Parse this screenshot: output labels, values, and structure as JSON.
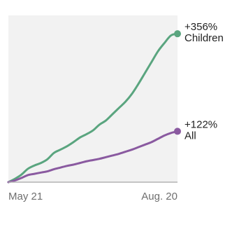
{
  "chart_data": {
    "type": "line",
    "title": "",
    "xlabel": "",
    "ylabel": "",
    "x_ticks": [
      "May 21",
      "Aug. 20"
    ],
    "ylim": [
      0,
      400
    ],
    "grid": false,
    "legend": "none",
    "colors": {
      "plot_background": "#f2f2f2",
      "baseline": "#b3b3b3",
      "children": "#5aa57f",
      "all": "#8a5aa0"
    },
    "x": [
      0,
      1,
      2,
      3,
      4,
      5,
      6,
      7,
      8,
      9,
      10,
      11,
      12,
      13,
      14,
      15,
      16,
      17,
      18,
      19,
      20,
      21,
      22,
      23,
      24,
      25,
      26
    ],
    "series": [
      {
        "name": "Children",
        "annotation": "+356%",
        "label": "Children",
        "color": "#5aa57f",
        "values": [
          0,
          8,
          18,
          32,
          40,
          46,
          55,
          70,
          78,
          86,
          96,
          107,
          115,
          124,
          138,
          148,
          163,
          178,
          193,
          212,
          236,
          262,
          288,
          314,
          334,
          352,
          356
        ]
      },
      {
        "name": "All",
        "annotation": "+122%",
        "label": "All",
        "color": "#8a5aa0",
        "values": [
          0,
          4,
          10,
          17,
          20,
          23,
          26,
          31,
          35,
          39,
          42,
          46,
          50,
          53,
          56,
          60,
          64,
          68,
          73,
          78,
          84,
          90,
          96,
          104,
          112,
          118,
          122
        ]
      }
    ],
    "annotations": [
      {
        "series": "Children",
        "value_text": "+356%",
        "label_text": "Children"
      },
      {
        "series": "All",
        "value_text": "+122%",
        "label_text": "All"
      }
    ]
  }
}
